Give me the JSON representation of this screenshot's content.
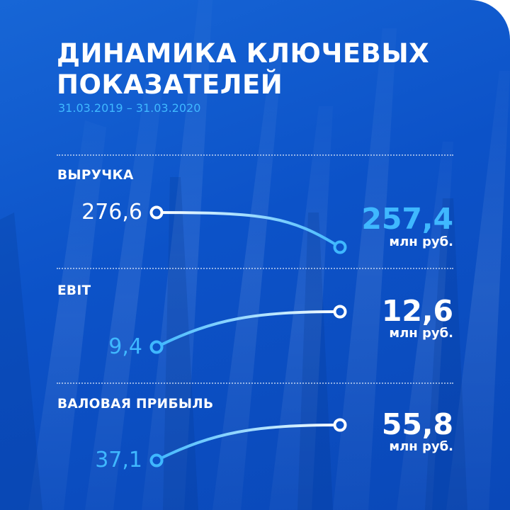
{
  "title_line1": "ДИНАМИКА КЛЮЧЕВЫХ",
  "title_line2": "ПОКАЗАТЕЛЕЙ",
  "period": "31.03.2019 – 31.03.2020",
  "colors": {
    "background": "#0c52c8",
    "accent": "#3fb8ff",
    "text": "#ffffff"
  },
  "chart_data": {
    "type": "line",
    "x": [
      "31.03.2019",
      "31.03.2020"
    ],
    "series": [
      {
        "name": "ВЫРУЧКА",
        "start_label": "276,6",
        "end_label": "257,4",
        "unit": "млн руб.",
        "values": [
          276.6,
          257.4
        ]
      },
      {
        "name": "EBIT",
        "start_label": "9,4",
        "end_label": "12,6",
        "unit": "млн руб.",
        "values": [
          9.4,
          12.6
        ]
      },
      {
        "name": "ВАЛОВАЯ ПРИБЫЛЬ",
        "start_label": "37,1",
        "end_label": "55,8",
        "unit": "млн руб.",
        "values": [
          37.1,
          55.8
        ]
      }
    ]
  }
}
